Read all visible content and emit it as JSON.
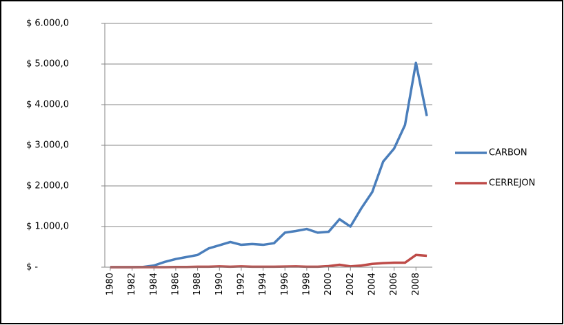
{
  "chart_data": {
    "type": "line",
    "x": [
      1980,
      1981,
      1982,
      1983,
      1984,
      1985,
      1986,
      1987,
      1988,
      1989,
      1990,
      1991,
      1992,
      1993,
      1994,
      1995,
      1996,
      1997,
      1998,
      1999,
      2000,
      2001,
      2002,
      2003,
      2004,
      2005,
      2006,
      2007,
      2008,
      2009
    ],
    "xlim": [
      1979.5,
      2009.5
    ],
    "xticks": [
      1980,
      1982,
      1984,
      1986,
      1988,
      1990,
      1992,
      1994,
      1996,
      1998,
      2000,
      2002,
      2004,
      2006,
      2008
    ],
    "ylim": [
      0,
      6000
    ],
    "yticks": [
      {
        "value": 0,
        "label": "$ -"
      },
      {
        "value": 1000,
        "label": "$ 1.000,0"
      },
      {
        "value": 2000,
        "label": "$ 2.000,0"
      },
      {
        "value": 3000,
        "label": "$ 3.000,0"
      },
      {
        "value": 4000,
        "label": "$ 4.000,0"
      },
      {
        "value": 5000,
        "label": "$ 5.000,0"
      },
      {
        "value": 6000,
        "label": "$ 6.000,0"
      }
    ],
    "grid": true,
    "legend": "right",
    "series": [
      {
        "name": "CARBON",
        "color": "#4a7ebb",
        "values": [
          0,
          0,
          0,
          5,
          40,
          130,
          200,
          250,
          300,
          460,
          540,
          620,
          550,
          570,
          550,
          590,
          850,
          890,
          940,
          850,
          870,
          1180,
          1000,
          1450,
          1850,
          2600,
          2920,
          3500,
          5030,
          3720
        ]
      },
      {
        "name": "CERREJON",
        "color": "#be4b48",
        "values": [
          0,
          0,
          0,
          0,
          0,
          0,
          5,
          5,
          10,
          10,
          20,
          10,
          20,
          10,
          10,
          10,
          15,
          20,
          10,
          10,
          25,
          60,
          20,
          40,
          80,
          100,
          110,
          110,
          300,
          280
        ]
      }
    ]
  }
}
